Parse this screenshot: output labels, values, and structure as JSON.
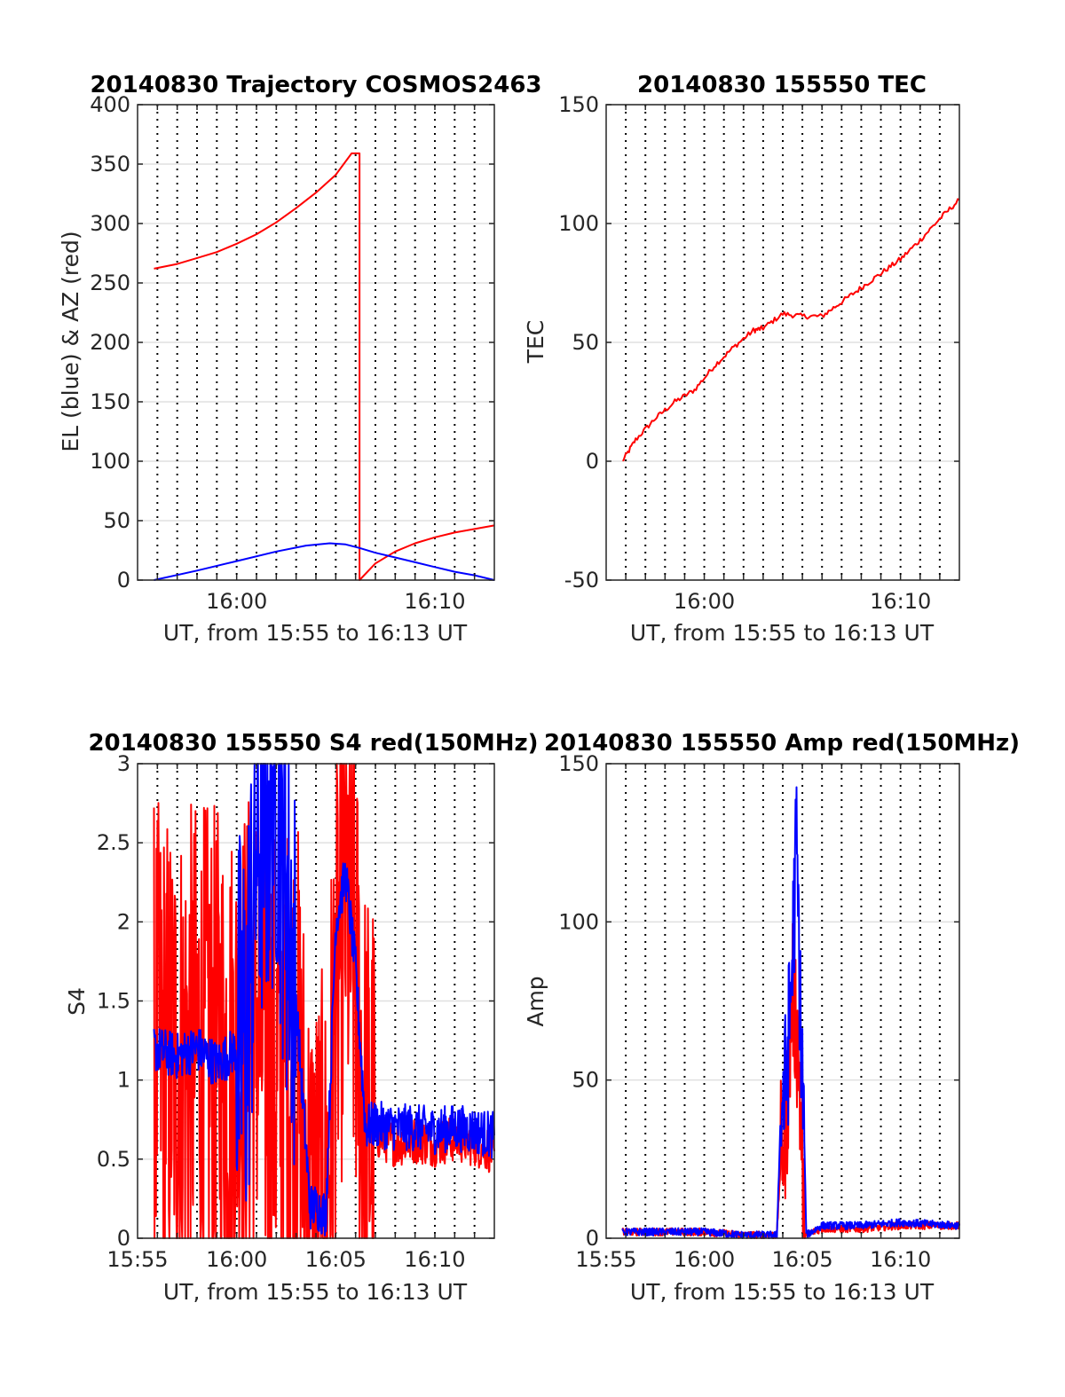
{
  "colors": {
    "azimuth": "#ff0000",
    "elevation": "#0000ff",
    "red_series": "#ff0000",
    "blue_series": "#0000ff",
    "grid": "#000000",
    "hgrid": "#e0e0e0"
  },
  "chart_data": [
    {
      "type": "line",
      "title": "20140830 Trajectory COSMOS2463",
      "xlabel": "UT, from 15:55 to 16:13 UT",
      "ylabel": "EL (blue) & AZ (red)",
      "x_unit": "minutes after 15:55 UT",
      "xlim": [
        0,
        18
      ],
      "ylim": [
        0,
        400
      ],
      "x_ticks": [
        {
          "x": 5,
          "label": "16:00"
        },
        {
          "x": 15,
          "label": "16:10"
        }
      ],
      "y_ticks": [
        "0",
        "50",
        "100",
        "150",
        "200",
        "250",
        "300",
        "350",
        "400"
      ],
      "grid": "dotted vertical lines every minute, light horizontal gridlines",
      "series": [
        {
          "color": "#ff0000",
          "x": [
            0.83,
            2,
            3,
            4,
            5,
            6,
            7,
            8,
            9,
            10,
            10.8,
            11.2,
            11.2,
            11.2,
            12,
            13,
            14,
            15,
            16,
            17,
            18
          ],
          "y": [
            262,
            266,
            271,
            276,
            283,
            291,
            301,
            313,
            326,
            341,
            359,
            359,
            0,
            0,
            14,
            24,
            31,
            36,
            40,
            43,
            46
          ]
        },
        {
          "color": "#0000ff",
          "x": [
            0.83,
            3,
            5,
            7,
            8.5,
            9.7,
            10.5,
            11.2,
            12,
            13,
            14,
            15,
            16,
            17,
            18
          ],
          "y": [
            0,
            8,
            16,
            24,
            29,
            31,
            30,
            27,
            23,
            19,
            15,
            11,
            7,
            4,
            0
          ]
        }
      ]
    },
    {
      "type": "line",
      "title": "20140830 155550 TEC",
      "xlabel": "UT, from 15:55 to 16:13 UT",
      "ylabel": "TEC",
      "x_unit": "minutes after 15:55 UT",
      "xlim": [
        0,
        18
      ],
      "ylim": [
        -50,
        150
      ],
      "x_ticks": [
        {
          "x": 5,
          "label": "16:00"
        },
        {
          "x": 15,
          "label": "16:10"
        }
      ],
      "y_ticks": [
        "-50",
        "0",
        "50",
        "100",
        "150"
      ],
      "grid": "dotted vertical lines every minute, light horizontal gridlines",
      "series": [
        {
          "color": "#ff0000",
          "x": [
            0.83,
            1.5,
            2.5,
            3.5,
            4.5,
            5.5,
            6.5,
            7.5,
            8,
            9,
            10,
            11,
            12,
            13,
            14,
            15,
            16,
            17,
            18
          ],
          "y": [
            0,
            9,
            18,
            25,
            30,
            40,
            48,
            55,
            56,
            62,
            61,
            61,
            67,
            73,
            79,
            85,
            93,
            102,
            110
          ]
        }
      ]
    },
    {
      "type": "line",
      "title": "20140830 155550 S4 red(150MHz)",
      "xlabel": "UT, from 15:55 to 16:13 UT",
      "ylabel": "S4",
      "x_unit": "minutes after 15:55 UT",
      "xlim": [
        0,
        18
      ],
      "ylim": [
        0,
        3
      ],
      "x_ticks": [
        {
          "x": 0,
          "label": "15:55"
        },
        {
          "x": 5,
          "label": "16:00"
        },
        {
          "x": 10,
          "label": "16:05"
        },
        {
          "x": 15,
          "label": "16:10"
        }
      ],
      "y_ticks": [
        "0",
        "0.5",
        "1",
        "1.5",
        "2",
        "2.5",
        "3"
      ],
      "grid": "dotted vertical lines every minute, light horizontal gridlines",
      "series": [
        {
          "color": "#ff0000",
          "x": [
            0.83,
            2,
            3,
            4,
            5,
            6,
            7,
            8,
            8.7,
            9,
            9.5,
            10,
            10.5,
            11,
            11.5,
            12,
            13,
            14,
            15,
            16,
            17,
            18
          ],
          "y": [
            1.2,
            1.1,
            1.2,
            1.15,
            1.1,
            1.4,
            1.0,
            1.2,
            0.1,
            0.12,
            0.1,
            1.5,
            2.2,
            1.6,
            0.7,
            0.65,
            0.6,
            0.62,
            0.6,
            0.63,
            0.6,
            0.55
          ],
          "note": "dense noisy trace spanning 0–3 over much of the interval"
        },
        {
          "color": "#0000ff",
          "x": [
            0.83,
            2,
            3,
            4,
            5,
            5.5,
            6,
            7,
            8,
            8.7,
            9,
            9.5,
            10,
            10.5,
            11,
            11.5,
            12,
            13,
            14,
            15,
            16,
            17,
            18
          ],
          "y": [
            1.2,
            1.15,
            1.2,
            1.1,
            1.2,
            1.3,
            2.5,
            3.0,
            1.5,
            0.2,
            0.2,
            0.15,
            2.0,
            2.3,
            1.7,
            0.7,
            0.72,
            0.7,
            0.7,
            0.68,
            0.7,
            0.68,
            0.65
          ]
        }
      ]
    },
    {
      "type": "line",
      "title": "20140830 155550 Amp red(150MHz)",
      "xlabel": "UT, from 15:55 to 16:13 UT",
      "ylabel": "Amp",
      "x_unit": "minutes after 15:55 UT",
      "xlim": [
        0,
        18
      ],
      "ylim": [
        0,
        150
      ],
      "x_ticks": [
        {
          "x": 0,
          "label": "15:55"
        },
        {
          "x": 5,
          "label": "16:00"
        },
        {
          "x": 10,
          "label": "16:05"
        },
        {
          "x": 15,
          "label": "16:10"
        }
      ],
      "y_ticks": [
        "0",
        "50",
        "100",
        "150"
      ],
      "grid": "dotted vertical lines every minute, light horizontal gridlines",
      "series": [
        {
          "color": "#ff0000",
          "x": [
            0.83,
            3,
            5,
            7,
            8.7,
            8.9,
            9.2,
            9.5,
            9.8,
            10,
            10.1,
            11,
            13,
            15,
            18
          ],
          "y": [
            2,
            2,
            2,
            1,
            1,
            25,
            40,
            80,
            60,
            20,
            1,
            3,
            3,
            4,
            4
          ]
        },
        {
          "color": "#0000ff",
          "x": [
            0.83,
            3,
            5,
            7,
            8.7,
            8.9,
            9.2,
            9.5,
            9.7,
            9.9,
            10.1,
            10.2,
            11,
            13,
            15,
            18
          ],
          "y": [
            2,
            2,
            2,
            1,
            1,
            40,
            50,
            90,
            125,
            70,
            30,
            1,
            4,
            4,
            5,
            4
          ]
        }
      ]
    }
  ]
}
